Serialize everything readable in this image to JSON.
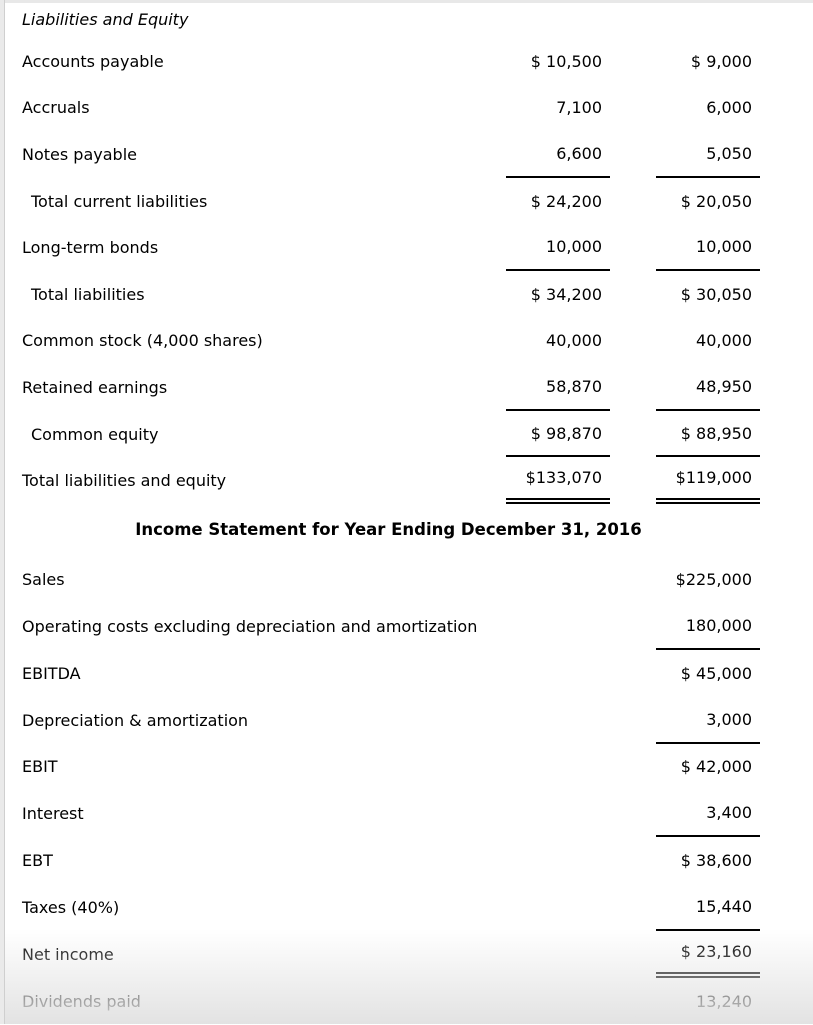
{
  "colors": {
    "text": "#000000",
    "rule_line": "#000000",
    "page_edge": "#eaeaea"
  },
  "balance_sheet": {
    "section_title": "Liabilities and Equity",
    "rows": [
      {
        "label": "Accounts payable",
        "indent": false,
        "col1": "$ 10,500",
        "col2": "$ 9,000",
        "rule": "none"
      },
      {
        "label": "Accruals",
        "indent": false,
        "col1": "7,100",
        "col2": "6,000",
        "rule": "none"
      },
      {
        "label": "Notes payable",
        "indent": false,
        "col1": "6,600",
        "col2": "5,050",
        "rule": "single"
      },
      {
        "label": "Total current liabilities",
        "indent": true,
        "col1": "$ 24,200",
        "col2": "$ 20,050",
        "rule": "none"
      },
      {
        "label": "Long-term bonds",
        "indent": false,
        "col1": "10,000",
        "col2": "10,000",
        "rule": "single"
      },
      {
        "label": "Total liabilities",
        "indent": true,
        "col1": "$ 34,200",
        "col2": "$ 30,050",
        "rule": "none"
      },
      {
        "label": "Common stock (4,000 shares)",
        "indent": false,
        "col1": "40,000",
        "col2": "40,000",
        "rule": "none"
      },
      {
        "label": "Retained earnings",
        "indent": false,
        "col1": "58,870",
        "col2": "48,950",
        "rule": "single"
      },
      {
        "label": "Common equity",
        "indent": true,
        "col1": "$ 98,870",
        "col2": "$ 88,950",
        "rule": "single"
      },
      {
        "label": "Total liabilities and equity",
        "indent": false,
        "col1": "$133,070",
        "col2": "$119,000",
        "rule": "double"
      }
    ]
  },
  "income_statement": {
    "title": "Income Statement for Year Ending December 31, 2016",
    "rows": [
      {
        "label": "Sales",
        "value": "$225,000",
        "rule": "none"
      },
      {
        "label": "Operating costs excluding depreciation and amortization",
        "value": "180,000",
        "rule": "single"
      },
      {
        "label": "EBITDA",
        "value": "$ 45,000",
        "rule": "none"
      },
      {
        "label": "Depreciation & amortization",
        "value": "3,000",
        "rule": "single"
      },
      {
        "label": "EBIT",
        "value": "$ 42,000",
        "rule": "none"
      },
      {
        "label": "Interest",
        "value": "3,400",
        "rule": "single"
      },
      {
        "label": "EBT",
        "value": "$ 38,600",
        "rule": "none"
      },
      {
        "label": "Taxes (40%)",
        "value": "15,440",
        "rule": "single"
      },
      {
        "label": "Net income",
        "value": "$ 23,160",
        "rule": "double"
      },
      {
        "label": "Dividends paid",
        "value": "13,240",
        "rule": "none"
      }
    ]
  }
}
